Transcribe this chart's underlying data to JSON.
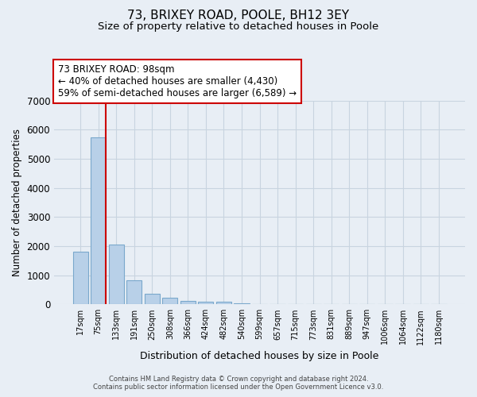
{
  "title1": "73, BRIXEY ROAD, POOLE, BH12 3EY",
  "title2": "Size of property relative to detached houses in Poole",
  "xlabel": "Distribution of detached houses by size in Poole",
  "ylabel": "Number of detached properties",
  "categories": [
    "17sqm",
    "75sqm",
    "133sqm",
    "191sqm",
    "250sqm",
    "308sqm",
    "366sqm",
    "424sqm",
    "482sqm",
    "540sqm",
    "599sqm",
    "657sqm",
    "715sqm",
    "773sqm",
    "831sqm",
    "889sqm",
    "947sqm",
    "1006sqm",
    "1064sqm",
    "1122sqm",
    "1180sqm"
  ],
  "values": [
    1800,
    5750,
    2060,
    820,
    370,
    230,
    120,
    80,
    80,
    30,
    20,
    0,
    0,
    0,
    0,
    0,
    0,
    0,
    0,
    0,
    0
  ],
  "bar_color": "#b8d0e8",
  "bar_edge_color": "#7aa8cc",
  "vline_color": "#cc0000",
  "vline_x": 1.425,
  "annotation_title": "73 BRIXEY ROAD: 98sqm",
  "annotation_line2": "← 40% of detached houses are smaller (4,430)",
  "annotation_line3": "59% of semi-detached houses are larger (6,589) →",
  "annotation_box_color": "white",
  "annotation_box_edgecolor": "#cc0000",
  "ylim": [
    0,
    7000
  ],
  "yticks": [
    0,
    1000,
    2000,
    3000,
    4000,
    5000,
    6000,
    7000
  ],
  "footer1": "Contains HM Land Registry data © Crown copyright and database right 2024.",
  "footer2": "Contains public sector information licensed under the Open Government Licence v3.0.",
  "bg_color": "#e8eef5",
  "grid_color": "#c8d4e0",
  "title1_fontsize": 11,
  "title2_fontsize": 9.5,
  "annot_fontsize": 8.5
}
